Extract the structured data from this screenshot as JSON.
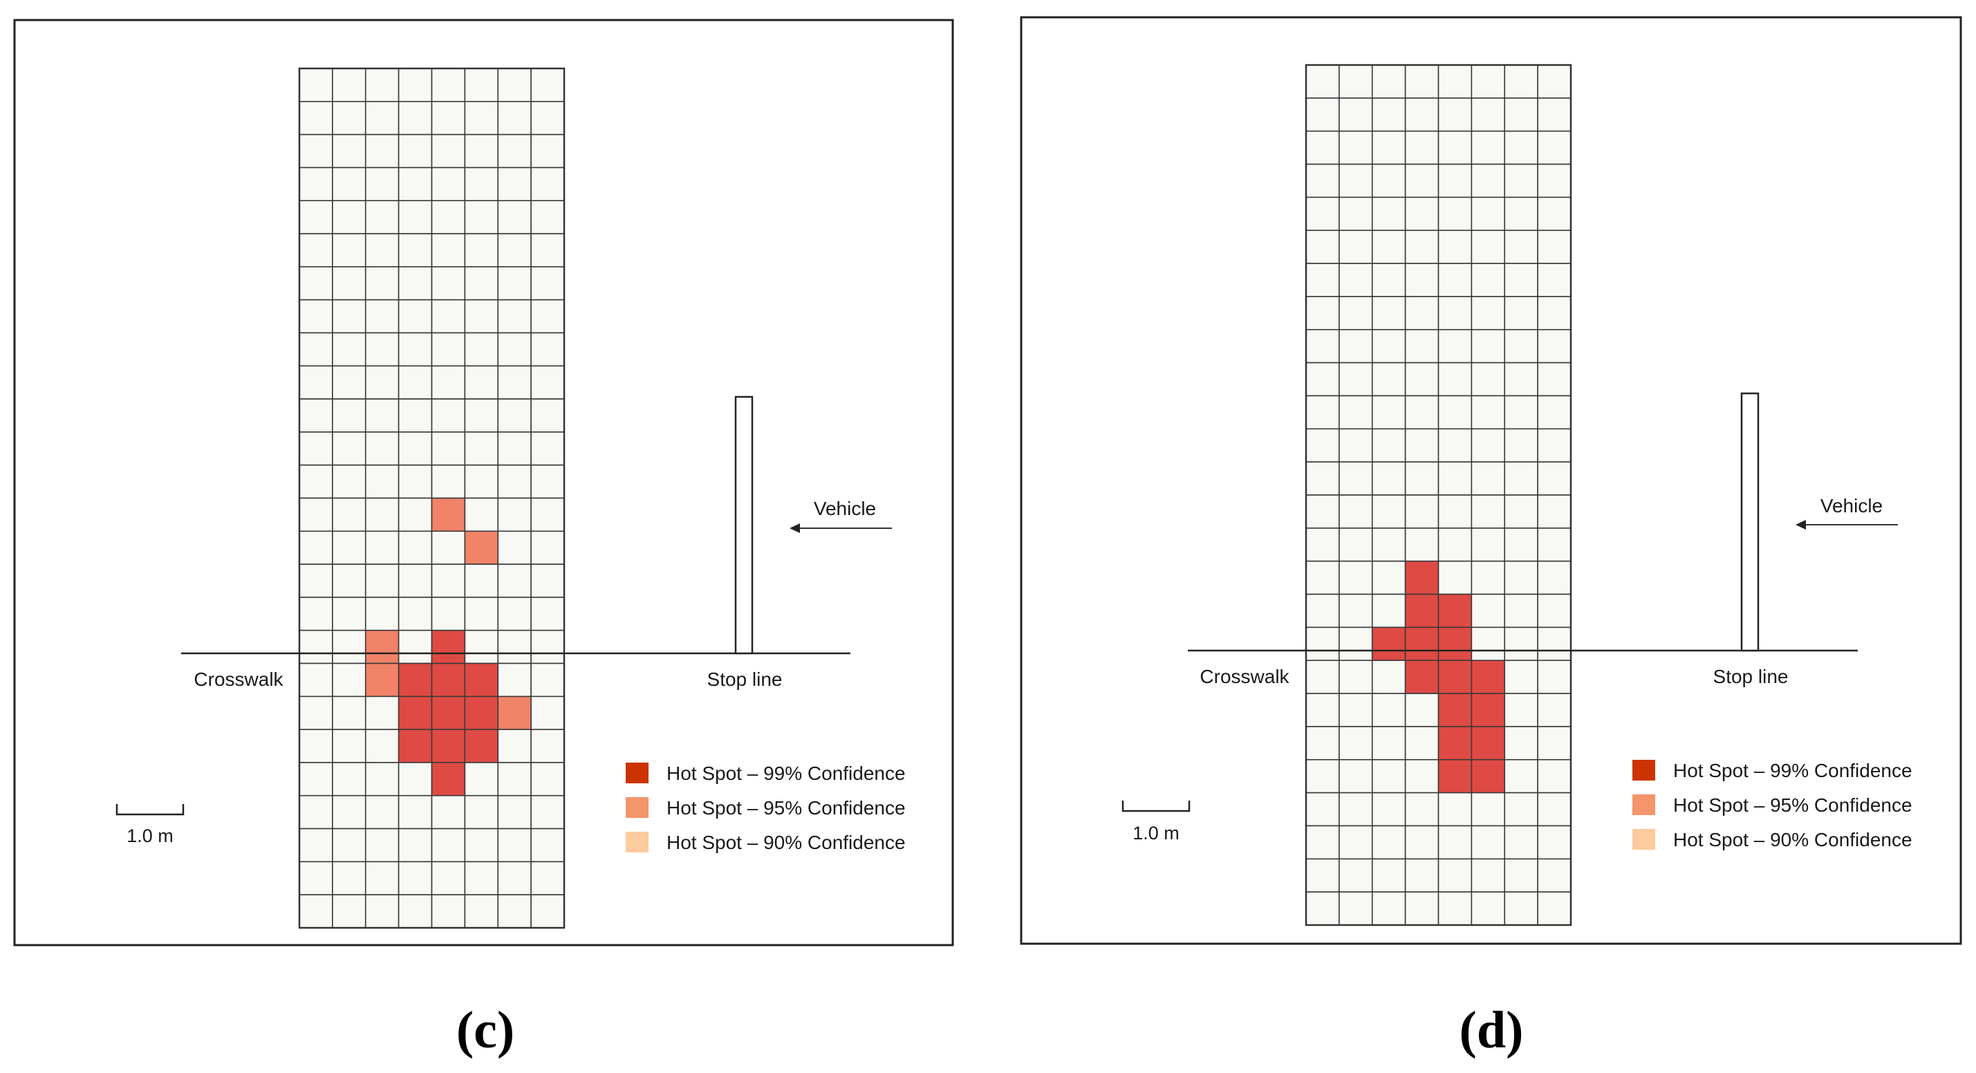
{
  "panels": [
    {
      "id": "c",
      "caption": "(c)",
      "labels": {
        "crosswalk": "Crosswalk",
        "stop_line": "Stop line",
        "vehicle": "Vehicle",
        "scale": "1.0 m"
      },
      "legend": [
        {
          "label": "Hot Spot – 99% Confidence",
          "color": "#cc3300"
        },
        {
          "label": "Hot Spot – 95% Confidence",
          "color": "#f4956b"
        },
        {
          "label": "Hot Spot – 90% Confidence",
          "color": "#fccb9e"
        }
      ],
      "grid": {
        "cols": 8,
        "rows": 26,
        "hot_cells": [
          {
            "row": 13,
            "col": 4,
            "level": 95
          },
          {
            "row": 14,
            "col": 5,
            "level": 95
          },
          {
            "row": 17,
            "col": 2,
            "level": 95
          },
          {
            "row": 17,
            "col": 4,
            "level": 99
          },
          {
            "row": 18,
            "col": 2,
            "level": 95
          },
          {
            "row": 18,
            "col": 3,
            "level": 99
          },
          {
            "row": 18,
            "col": 4,
            "level": 99
          },
          {
            "row": 18,
            "col": 5,
            "level": 99
          },
          {
            "row": 19,
            "col": 3,
            "level": 99
          },
          {
            "row": 19,
            "col": 4,
            "level": 99
          },
          {
            "row": 19,
            "col": 5,
            "level": 99
          },
          {
            "row": 19,
            "col": 6,
            "level": 95
          },
          {
            "row": 20,
            "col": 3,
            "level": 99
          },
          {
            "row": 20,
            "col": 4,
            "level": 99
          },
          {
            "row": 20,
            "col": 5,
            "level": 99
          },
          {
            "row": 21,
            "col": 4,
            "level": 99
          }
        ]
      }
    },
    {
      "id": "d",
      "caption": "(d)",
      "labels": {
        "crosswalk": "Crosswalk",
        "stop_line": "Stop line",
        "vehicle": "Vehicle",
        "scale": "1.0 m"
      },
      "legend": [
        {
          "label": "Hot Spot – 99% Confidence",
          "color": "#cc3300"
        },
        {
          "label": "Hot Spot – 95% Confidence",
          "color": "#f4956b"
        },
        {
          "label": "Hot Spot – 90% Confidence",
          "color": "#fccb9e"
        }
      ],
      "grid": {
        "cols": 8,
        "rows": 26,
        "hot_cells": [
          {
            "row": 15,
            "col": 3,
            "level": 99
          },
          {
            "row": 16,
            "col": 3,
            "level": 99
          },
          {
            "row": 16,
            "col": 4,
            "level": 99
          },
          {
            "row": 17,
            "col": 2,
            "level": 99
          },
          {
            "row": 17,
            "col": 3,
            "level": 99
          },
          {
            "row": 17,
            "col": 4,
            "level": 99
          },
          {
            "row": 18,
            "col": 3,
            "level": 99
          },
          {
            "row": 18,
            "col": 4,
            "level": 99
          },
          {
            "row": 18,
            "col": 5,
            "level": 99
          },
          {
            "row": 19,
            "col": 4,
            "level": 99
          },
          {
            "row": 19,
            "col": 5,
            "level": 99
          },
          {
            "row": 20,
            "col": 4,
            "level": 99
          },
          {
            "row": 20,
            "col": 5,
            "level": 99
          },
          {
            "row": 21,
            "col": 4,
            "level": 99
          },
          {
            "row": 21,
            "col": 5,
            "level": 99
          }
        ]
      }
    }
  ],
  "cell_colors": {
    "empty": "#f8f8f5",
    "hot_99": "#df4a44",
    "hot_95": "#f08368",
    "grid_line": "#3a3a3a"
  }
}
